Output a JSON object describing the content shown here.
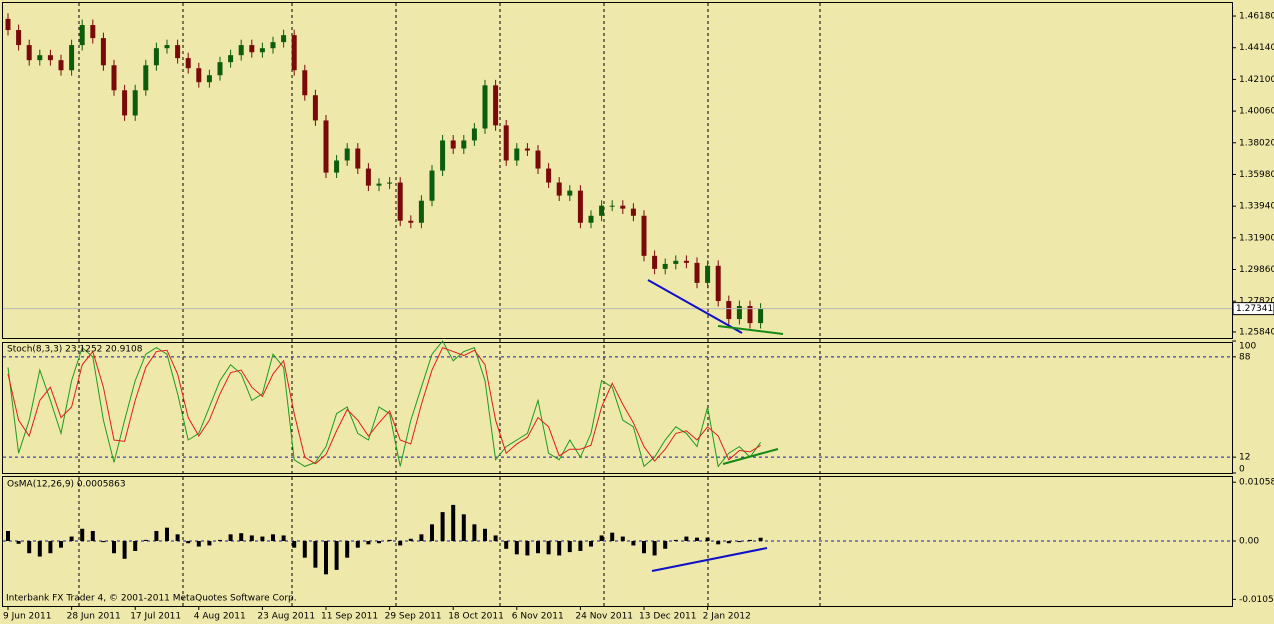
{
  "chart_data": [
    {
      "type": "candlestick",
      "up_color": "#0b5d0b",
      "down_color": "#7a0a0a",
      "categories": [
        "9 Jun 2011",
        null,
        null,
        null,
        null,
        null,
        "28 Jun 2011",
        null,
        null,
        null,
        null,
        null,
        "17 Jul 2011",
        null,
        null,
        null,
        null,
        null,
        "4 Aug 2011",
        null,
        null,
        null,
        null,
        null,
        "23 Aug 2011",
        null,
        null,
        null,
        null,
        null,
        "11 Sep 2011",
        null,
        null,
        null,
        null,
        null,
        "29 Sep 2011",
        null,
        null,
        null,
        null,
        null,
        "18 Oct 2011",
        null,
        null,
        null,
        null,
        null,
        "6 Nov 2011",
        null,
        null,
        null,
        null,
        null,
        "24 Nov 2011",
        null,
        null,
        null,
        null,
        null,
        "13 Dec 2011",
        null,
        null,
        null,
        null,
        null,
        "2 Jan 2012",
        null,
        null,
        null,
        null,
        null
      ],
      "open": [
        1.46,
        1.4528,
        1.4431,
        1.4334,
        1.4366,
        1.4334,
        1.4269,
        1.4431,
        1.456,
        1.4476,
        1.4301,
        1.414,
        1.3978,
        1.414,
        1.4301,
        1.4411,
        1.4431,
        1.4347,
        1.4282,
        1.4192,
        1.4237,
        1.4321,
        1.4366,
        1.4431,
        1.4385,
        1.4411,
        1.445,
        1.4495,
        1.4269,
        1.4108,
        1.3946,
        1.361,
        1.3688,
        1.3765,
        1.3636,
        1.3526,
        1.3539,
        1.3546,
        1.33,
        1.3287,
        1.3429,
        1.3623,
        1.3817,
        1.3765,
        1.3817,
        1.3894,
        1.4172,
        1.3914,
        1.3688,
        1.3765,
        1.3752,
        1.3636,
        1.3546,
        1.3462,
        1.3494,
        1.3287,
        1.3332,
        1.3397,
        1.3397,
        1.3378,
        1.3332,
        1.3074,
        1.299,
        1.3022,
        1.3042,
        1.3029,
        1.29,
        1.301,
        1.2783,
        1.2667,
        1.2751,
        1.2641
      ],
      "high": [
        1.4635,
        1.4563,
        1.4466,
        1.4401,
        1.4401,
        1.4369,
        1.4466,
        1.4595,
        1.4595,
        1.4511,
        1.4336,
        1.4175,
        1.4175,
        1.4336,
        1.4446,
        1.4466,
        1.4466,
        1.4382,
        1.4317,
        1.4272,
        1.4356,
        1.4401,
        1.4466,
        1.4466,
        1.4446,
        1.4485,
        1.453,
        1.453,
        1.4304,
        1.4143,
        1.3981,
        1.3723,
        1.38,
        1.38,
        1.3671,
        1.3574,
        1.3581,
        1.3581,
        1.3335,
        1.3464,
        1.3658,
        1.3852,
        1.3852,
        1.3852,
        1.3929,
        1.4207,
        1.4207,
        1.3949,
        1.38,
        1.38,
        1.3787,
        1.3671,
        1.3581,
        1.3529,
        1.3529,
        1.3367,
        1.3432,
        1.3432,
        1.3432,
        1.3413,
        1.3367,
        1.3109,
        1.3057,
        1.3077,
        1.3077,
        1.3064,
        1.3045,
        1.3045,
        1.2818,
        1.2786,
        1.2786,
        1.2769
      ],
      "low": [
        1.4493,
        1.4396,
        1.4299,
        1.4299,
        1.4299,
        1.4234,
        1.4234,
        1.4396,
        1.4441,
        1.4266,
        1.4105,
        1.3943,
        1.3943,
        1.4105,
        1.4266,
        1.4376,
        1.4312,
        1.4247,
        1.4157,
        1.4157,
        1.4202,
        1.4286,
        1.4331,
        1.435,
        1.435,
        1.4376,
        1.4415,
        1.4234,
        1.4073,
        1.3911,
        1.3575,
        1.3575,
        1.3653,
        1.3601,
        1.3491,
        1.3491,
        1.3504,
        1.3265,
        1.3252,
        1.3252,
        1.3394,
        1.3588,
        1.373,
        1.373,
        1.3782,
        1.3859,
        1.3879,
        1.3653,
        1.3653,
        1.3717,
        1.3601,
        1.3511,
        1.3427,
        1.3427,
        1.3252,
        1.3252,
        1.3297,
        1.3362,
        1.3343,
        1.3297,
        1.3039,
        1.2955,
        1.2955,
        1.2987,
        1.2994,
        1.2865,
        1.2865,
        1.2748,
        1.2632,
        1.2632,
        1.2606,
        1.2606
      ],
      "close": [
        1.4528,
        1.4431,
        1.4334,
        1.4366,
        1.4334,
        1.4269,
        1.4431,
        1.456,
        1.4476,
        1.4301,
        1.414,
        1.3978,
        1.414,
        1.4301,
        1.4411,
        1.4431,
        1.4347,
        1.4282,
        1.4192,
        1.4237,
        1.4321,
        1.4366,
        1.4431,
        1.4385,
        1.4411,
        1.445,
        1.4495,
        1.4269,
        1.4108,
        1.3946,
        1.361,
        1.3688,
        1.3765,
        1.3636,
        1.3526,
        1.3539,
        1.3546,
        1.33,
        1.3287,
        1.3429,
        1.3623,
        1.3817,
        1.3765,
        1.3817,
        1.3894,
        1.4172,
        1.3914,
        1.3688,
        1.3765,
        1.3752,
        1.3636,
        1.3546,
        1.3462,
        1.3494,
        1.3287,
        1.3332,
        1.3397,
        1.3397,
        1.3378,
        1.3332,
        1.3074,
        1.299,
        1.3022,
        1.3042,
        1.3029,
        1.29,
        1.301,
        1.2783,
        1.2667,
        1.2751,
        1.2641,
        1.27341
      ],
      "current_price": 1.27341,
      "ylim": [
        1.2545,
        1.4702
      ],
      "yticks": [
        {
          "value": 1.4618,
          "label": "1.46180"
        },
        {
          "value": 1.4414,
          "label": "1.44140"
        },
        {
          "value": 1.421,
          "label": "1.42100"
        },
        {
          "value": 1.4006,
          "label": "1.40060"
        },
        {
          "value": 1.3802,
          "label": "1.38020"
        },
        {
          "value": 1.3598,
          "label": "1.35980"
        },
        {
          "value": 1.3394,
          "label": "1.33940"
        },
        {
          "value": 1.319,
          "label": "1.31900"
        },
        {
          "value": 1.2986,
          "label": "1.29860"
        },
        {
          "value": 1.2782,
          "label": "1.27820"
        },
        {
          "value": 1.2584,
          "label": "1.25840"
        }
      ]
    },
    {
      "type": "line",
      "title": "Stoch(8,3,3) 23.1252 20.9108",
      "series": [
        {
          "name": "Main",
          "color": "#1f9a1f",
          "values": [
            80,
            15,
            40,
            78,
            55,
            30,
            70,
            95,
            88,
            40,
            8,
            40,
            70,
            90,
            95,
            90,
            60,
            25,
            30,
            50,
            70,
            82,
            75,
            55,
            60,
            90,
            80,
            10,
            5,
            8,
            20,
            45,
            50,
            30,
            25,
            50,
            45,
            5,
            40,
            65,
            90,
            100,
            85,
            92,
            95,
            70,
            10,
            20,
            25,
            30,
            55,
            15,
            10,
            25,
            12,
            30,
            70,
            65,
            40,
            35,
            5,
            12,
            25,
            35,
            30,
            20,
            50,
            5,
            15,
            20,
            12,
            23.1252
          ]
        },
        {
          "name": "Signal",
          "color": "#e0201a",
          "values": [
            75,
            40,
            28,
            55,
            65,
            42,
            50,
            82,
            92,
            65,
            25,
            24,
            55,
            80,
            92,
            93,
            75,
            42,
            28,
            40,
            60,
            76,
            78,
            65,
            58,
            75,
            85,
            45,
            12,
            7,
            14,
            32,
            48,
            40,
            28,
            38,
            47,
            25,
            22,
            52,
            78,
            95,
            92,
            89,
            93,
            82,
            40,
            15,
            22,
            27,
            42,
            35,
            13,
            18,
            18,
            21,
            50,
            68,
            52,
            38,
            20,
            9,
            18,
            30,
            32,
            25,
            35,
            28,
            10,
            17,
            16,
            20.9108
          ]
        }
      ],
      "ylim": [
        0,
        100
      ],
      "yticks": [
        0,
        12,
        88,
        100
      ],
      "levels": [
        12,
        88
      ]
    },
    {
      "type": "bar",
      "title": "OsMA(12,26,9) 0.0005863",
      "color": "#000000",
      "annotation": "Interbank FX Trader 4, © 2001-2011 MetaQuotes Software Corp.",
      "values": [
        0.0018,
        -0.0005,
        -0.0022,
        -0.0028,
        -0.0022,
        -0.0012,
        0.0008,
        0.0022,
        0.0018,
        -0.0002,
        -0.0022,
        -0.0032,
        -0.0018,
        0.0002,
        0.0018,
        0.0024,
        0.0012,
        -0.0004,
        -0.001,
        -0.0008,
        0.0002,
        0.0012,
        0.0014,
        0.001,
        0.0008,
        0.0012,
        0.001,
        -0.0012,
        -0.003,
        -0.0048,
        -0.006,
        -0.0052,
        -0.003,
        -0.0012,
        -0.0006,
        -0.0004,
        0.0002,
        -0.0008,
        0.0004,
        0.0012,
        0.003,
        0.0052,
        0.0065,
        0.0048,
        0.003,
        0.0022,
        0.001,
        -0.0014,
        -0.0024,
        -0.0026,
        -0.0022,
        -0.0024,
        -0.0026,
        -0.002,
        -0.0018,
        -0.001,
        0.001,
        0.0015,
        0.0008,
        -0.0008,
        -0.0022,
        -0.0026,
        -0.0014,
        0.0002,
        0.0008,
        0.0006,
        0.0006,
        -0.0006,
        -0.0004,
        -0.0002,
        0.0002,
        0.0005863
      ],
      "ylim": [
        -0.0117,
        0.0117
      ],
      "yticks": [
        0.01058,
        {
          "value": 0,
          "label": "0.00"
        },
        -0.0105
      ],
      "levels": [
        0
      ]
    }
  ]
}
